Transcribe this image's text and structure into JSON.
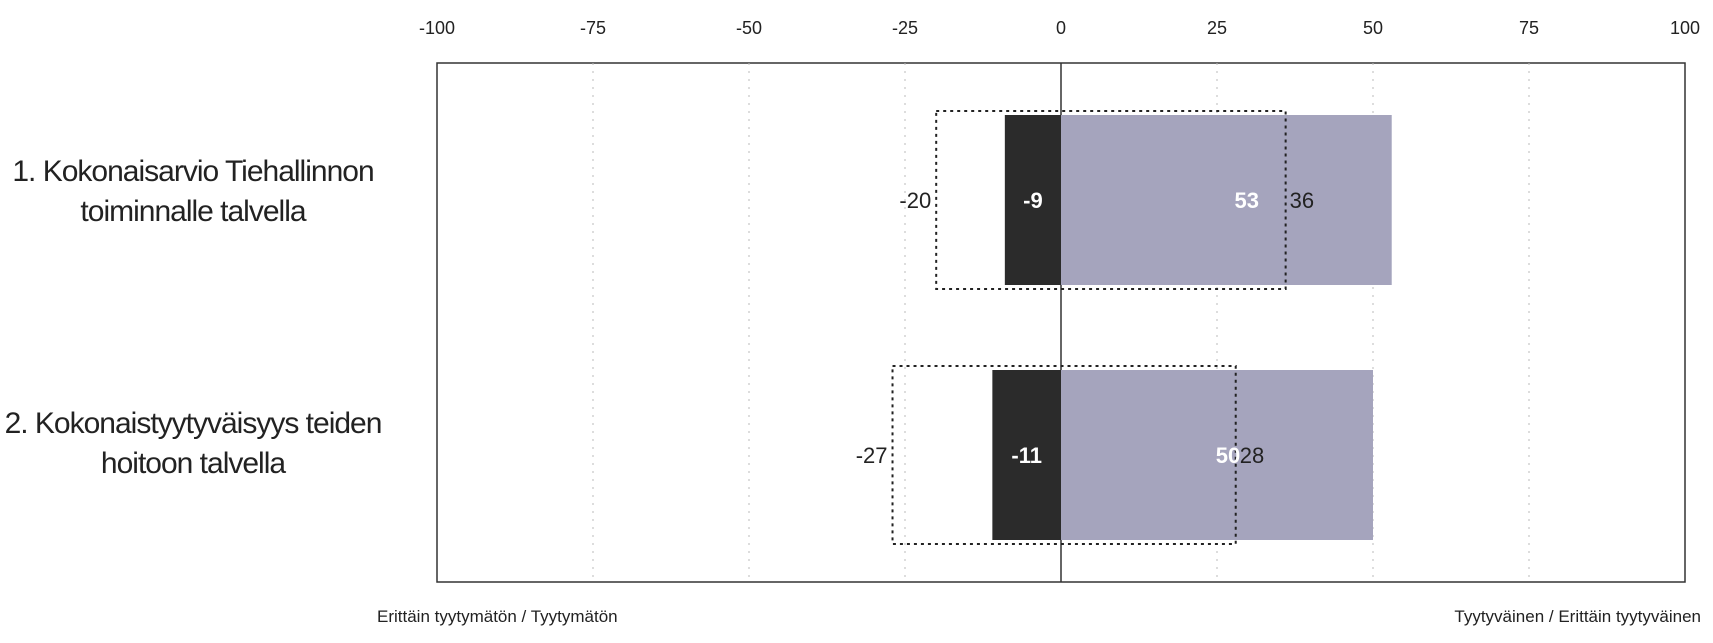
{
  "chart_data": {
    "type": "bar",
    "orientation": "horizontal",
    "stacked": "diverging",
    "title": "",
    "xlim": [
      -100,
      100
    ],
    "xticks": [
      -100,
      -75,
      -50,
      -25,
      0,
      25,
      50,
      75,
      100
    ],
    "grid": true,
    "categories": [
      [
        "1. Kokonaisarvio Tiehallinnon",
        "toiminnalle talvella"
      ],
      [
        "2. Kokonaistyytyväisyys teiden",
        "hoitoon talvella"
      ]
    ],
    "series": [
      {
        "kind": "negative-bar",
        "values": [
          -9,
          -11
        ],
        "color": "#2b2b2b"
      },
      {
        "kind": "positive-bar",
        "values": [
          53,
          50
        ],
        "color": "#a5a4bd"
      },
      {
        "kind": "dotted-outline",
        "values": [
          [
            -20,
            36
          ],
          [
            -27,
            28
          ]
        ]
      }
    ],
    "footer_left": "Erittäin tyytymätön / Tyytymätön",
    "footer_right": "Tyytyväinen / Erittäin tyytyväinen"
  }
}
